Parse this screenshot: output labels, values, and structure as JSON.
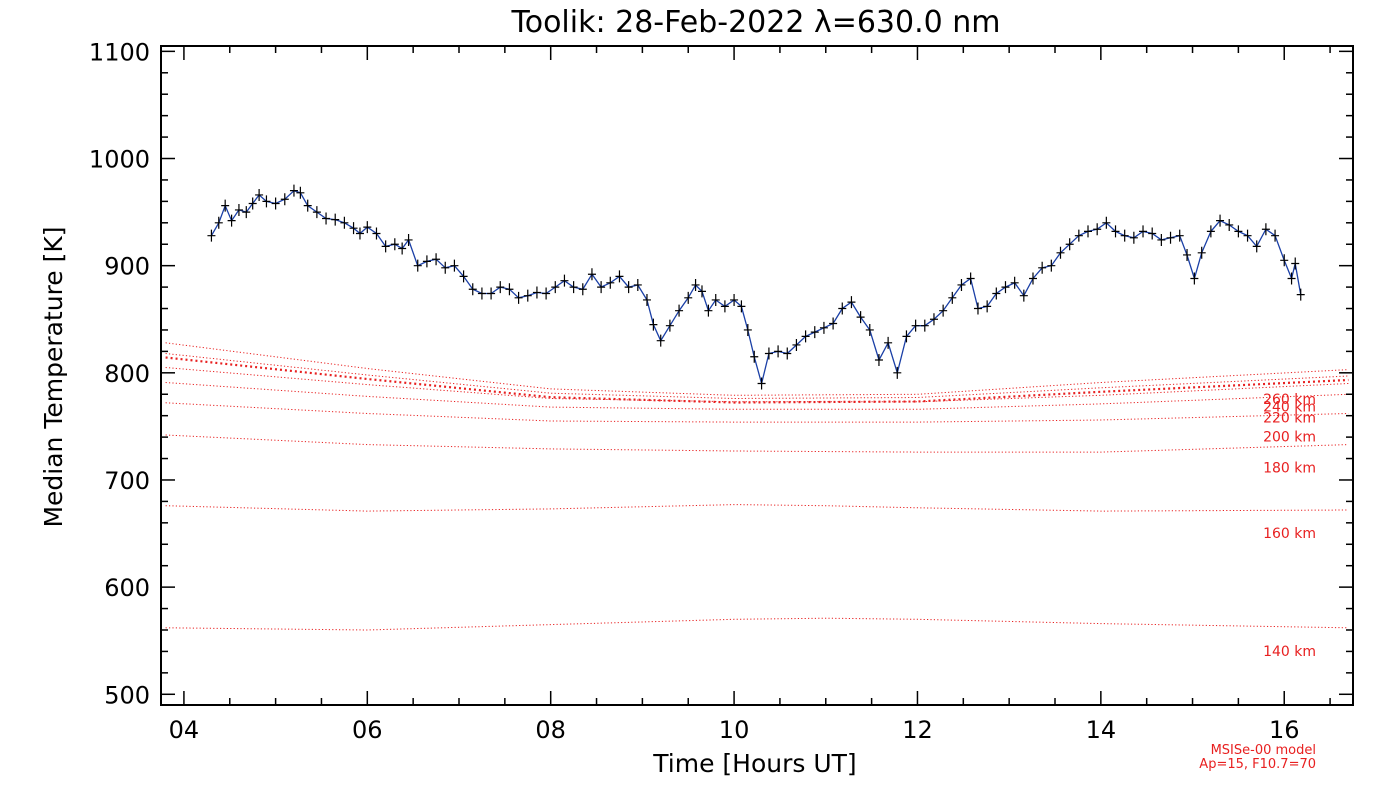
{
  "chart_data": {
    "type": "line",
    "title": "Toolik: 28-Feb-2022 λ=630.0 nm",
    "xlabel": "Time [Hours UT]",
    "ylabel": "Median Temperature [K]",
    "xlim": [
      3.75,
      16.75
    ],
    "ylim": [
      490,
      1105
    ],
    "xticks": [
      4,
      6,
      8,
      10,
      12,
      14,
      16
    ],
    "xtick_labels": [
      "04",
      "06",
      "08",
      "10",
      "12",
      "14",
      "16"
    ],
    "yticks": [
      500,
      600,
      700,
      800,
      900,
      1000,
      1100
    ],
    "ytick_labels": [
      "500",
      "600",
      "700",
      "800",
      "900",
      "1000",
      "1100"
    ],
    "grid": false,
    "measured": {
      "color": "#1a3fa6",
      "marker_color": "#000000",
      "points": [
        [
          4.3,
          928
        ],
        [
          4.38,
          940
        ],
        [
          4.45,
          956
        ],
        [
          4.52,
          942
        ],
        [
          4.6,
          952
        ],
        [
          4.68,
          950
        ],
        [
          4.75,
          958
        ],
        [
          4.82,
          966
        ],
        [
          4.9,
          960
        ],
        [
          5.0,
          958
        ],
        [
          5.1,
          962
        ],
        [
          5.2,
          970
        ],
        [
          5.27,
          968
        ],
        [
          5.35,
          956
        ],
        [
          5.45,
          950
        ],
        [
          5.55,
          944
        ],
        [
          5.65,
          943
        ],
        [
          5.75,
          940
        ],
        [
          5.85,
          935
        ],
        [
          5.92,
          930
        ],
        [
          6.0,
          936
        ],
        [
          6.1,
          930
        ],
        [
          6.2,
          918
        ],
        [
          6.3,
          920
        ],
        [
          6.38,
          916
        ],
        [
          6.45,
          924
        ],
        [
          6.55,
          900
        ],
        [
          6.65,
          904
        ],
        [
          6.75,
          906
        ],
        [
          6.85,
          898
        ],
        [
          6.95,
          900
        ],
        [
          7.05,
          890
        ],
        [
          7.15,
          878
        ],
        [
          7.25,
          874
        ],
        [
          7.35,
          874
        ],
        [
          7.45,
          880
        ],
        [
          7.55,
          878
        ],
        [
          7.65,
          870
        ],
        [
          7.75,
          872
        ],
        [
          7.85,
          875
        ],
        [
          7.95,
          874
        ],
        [
          8.05,
          880
        ],
        [
          8.15,
          886
        ],
        [
          8.25,
          880
        ],
        [
          8.35,
          878
        ],
        [
          8.45,
          892
        ],
        [
          8.55,
          880
        ],
        [
          8.65,
          884
        ],
        [
          8.75,
          890
        ],
        [
          8.85,
          880
        ],
        [
          8.95,
          882
        ],
        [
          9.05,
          868
        ],
        [
          9.12,
          845
        ],
        [
          9.2,
          830
        ],
        [
          9.3,
          844
        ],
        [
          9.4,
          858
        ],
        [
          9.5,
          870
        ],
        [
          9.58,
          882
        ],
        [
          9.65,
          876
        ],
        [
          9.72,
          858
        ],
        [
          9.8,
          868
        ],
        [
          9.9,
          862
        ],
        [
          10.0,
          868
        ],
        [
          10.08,
          862
        ],
        [
          10.15,
          840
        ],
        [
          10.22,
          815
        ],
        [
          10.3,
          790
        ],
        [
          10.38,
          818
        ],
        [
          10.48,
          820
        ],
        [
          10.58,
          818
        ],
        [
          10.68,
          826
        ],
        [
          10.78,
          834
        ],
        [
          10.88,
          838
        ],
        [
          10.98,
          842
        ],
        [
          11.08,
          846
        ],
        [
          11.18,
          860
        ],
        [
          11.28,
          866
        ],
        [
          11.38,
          852
        ],
        [
          11.48,
          840
        ],
        [
          11.58,
          812
        ],
        [
          11.68,
          828
        ],
        [
          11.78,
          800
        ],
        [
          11.88,
          834
        ],
        [
          11.98,
          844
        ],
        [
          12.08,
          844
        ],
        [
          12.18,
          850
        ],
        [
          12.28,
          858
        ],
        [
          12.38,
          870
        ],
        [
          12.48,
          882
        ],
        [
          12.58,
          888
        ],
        [
          12.66,
          860
        ],
        [
          12.76,
          862
        ],
        [
          12.86,
          874
        ],
        [
          12.96,
          880
        ],
        [
          13.06,
          884
        ],
        [
          13.16,
          872
        ],
        [
          13.26,
          888
        ],
        [
          13.36,
          898
        ],
        [
          13.46,
          900
        ],
        [
          13.56,
          912
        ],
        [
          13.66,
          920
        ],
        [
          13.76,
          928
        ],
        [
          13.86,
          932
        ],
        [
          13.96,
          934
        ],
        [
          14.06,
          940
        ],
        [
          14.16,
          932
        ],
        [
          14.26,
          928
        ],
        [
          14.36,
          926
        ],
        [
          14.46,
          932
        ],
        [
          14.56,
          930
        ],
        [
          14.66,
          924
        ],
        [
          14.76,
          926
        ],
        [
          14.86,
          928
        ],
        [
          14.94,
          910
        ],
        [
          15.02,
          888
        ],
        [
          15.1,
          912
        ],
        [
          15.2,
          932
        ],
        [
          15.3,
          942
        ],
        [
          15.4,
          938
        ],
        [
          15.5,
          932
        ],
        [
          15.6,
          928
        ],
        [
          15.7,
          918
        ],
        [
          15.8,
          934
        ],
        [
          15.9,
          928
        ],
        [
          16.0,
          905
        ],
        [
          16.08,
          888
        ],
        [
          16.12,
          902
        ],
        [
          16.18,
          873
        ]
      ]
    },
    "model_curves": [
      {
        "label": "140 km",
        "values": [
          [
            3.8,
            562
          ],
          [
            6.0,
            560
          ],
          [
            8.0,
            565
          ],
          [
            10.0,
            570
          ],
          [
            11.0,
            571
          ],
          [
            12.0,
            570
          ],
          [
            14.0,
            566
          ],
          [
            16.7,
            562
          ]
        ]
      },
      {
        "label": "160 km",
        "values": [
          [
            3.8,
            676
          ],
          [
            6.0,
            671
          ],
          [
            8.0,
            673
          ],
          [
            10.0,
            677
          ],
          [
            11.0,
            676
          ],
          [
            12.0,
            674
          ],
          [
            14.0,
            671
          ],
          [
            16.7,
            672
          ]
        ]
      },
      {
        "label": "180 km",
        "values": [
          [
            3.8,
            742
          ],
          [
            6.0,
            733
          ],
          [
            8.0,
            729
          ],
          [
            10.0,
            727
          ],
          [
            12.0,
            726
          ],
          [
            14.0,
            726
          ],
          [
            16.7,
            733
          ]
        ]
      },
      {
        "label": "200 km",
        "values": [
          [
            3.8,
            772
          ],
          [
            6.0,
            762
          ],
          [
            8.0,
            755
          ],
          [
            10.0,
            754
          ],
          [
            12.0,
            754
          ],
          [
            14.0,
            756
          ],
          [
            16.7,
            762
          ]
        ]
      },
      {
        "label": "220 km",
        "values": [
          [
            3.8,
            791
          ],
          [
            6.0,
            778
          ],
          [
            8.0,
            768
          ],
          [
            10.0,
            766
          ],
          [
            12.0,
            766
          ],
          [
            14.0,
            771
          ],
          [
            16.7,
            780
          ]
        ]
      },
      {
        "label": "240 km",
        "values": [
          [
            3.8,
            805
          ],
          [
            6.0,
            789
          ],
          [
            8.0,
            776
          ],
          [
            10.0,
            773
          ],
          [
            12.0,
            773
          ],
          [
            14.0,
            779
          ],
          [
            16.7,
            790
          ]
        ]
      },
      {
        "label": "260 km",
        "values": [
          [
            3.8,
            818
          ],
          [
            6.0,
            798
          ],
          [
            8.0,
            781
          ],
          [
            10.0,
            776
          ],
          [
            12.0,
            777
          ],
          [
            14.0,
            786
          ],
          [
            16.7,
            797
          ]
        ]
      },
      {
        "label": "",
        "values": [
          [
            3.8,
            828
          ],
          [
            6.0,
            804
          ],
          [
            8.0,
            785
          ],
          [
            10.0,
            779
          ],
          [
            12.0,
            780
          ],
          [
            14.0,
            791
          ],
          [
            16.7,
            803
          ]
        ]
      }
    ],
    "model_color": "#e82020",
    "note_lines": [
      "MSISe-00 model",
      "Ap=15, F10.7=70"
    ]
  }
}
